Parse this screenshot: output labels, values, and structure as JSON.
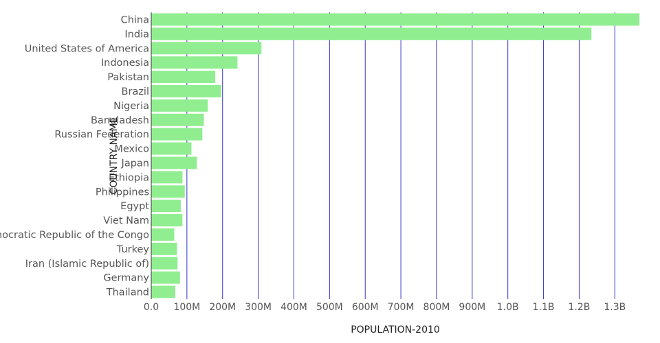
{
  "chart_data": {
    "type": "bar",
    "orientation": "horizontal",
    "title": "",
    "xlabel": "POPULATION-2010",
    "ylabel": "COUNTRY NAME",
    "categories": [
      "China",
      "India",
      "United States of America",
      "Indonesia",
      "Pakistan",
      "Brazil",
      "Nigeria",
      "Bangladesh",
      "Russian Federation",
      "Mexico",
      "Japan",
      "Ethiopia",
      "Philippines",
      "Egypt",
      "Viet Nam",
      "Democratic Republic of the Congo",
      "Turkey",
      "Iran (Islamic Republic of)",
      "Germany",
      "Thailand"
    ],
    "values": [
      1368810000,
      1234280000,
      309010000,
      241830000,
      179420000,
      195710000,
      158500000,
      147580000,
      143240000,
      112530000,
      128070000,
      87640000,
      93970000,
      82760000,
      87410000,
      64520000,
      72330000,
      73760000,
      80830000,
      67200000
    ],
    "xlim": [
      0,
      1368810000
    ],
    "x_ticks": [
      0,
      100000000,
      200000000,
      300000000,
      400000000,
      500000000,
      600000000,
      700000000,
      800000000,
      900000000,
      1000000000,
      1100000000,
      1200000000,
      1300000000
    ],
    "x_tick_labels": [
      "0.0",
      "100M",
      "200M",
      "300M",
      "400M",
      "500M",
      "600M",
      "700M",
      "800M",
      "900M",
      "1.0B",
      "1.1B",
      "1.2B",
      "1.3B"
    ],
    "grid": "vertical",
    "legend": "none",
    "colors": {
      "bar": "#90EE90",
      "grid": "#3333cc",
      "axis": "#333333",
      "tick_text": "#555555",
      "title_text": "#222222"
    }
  }
}
